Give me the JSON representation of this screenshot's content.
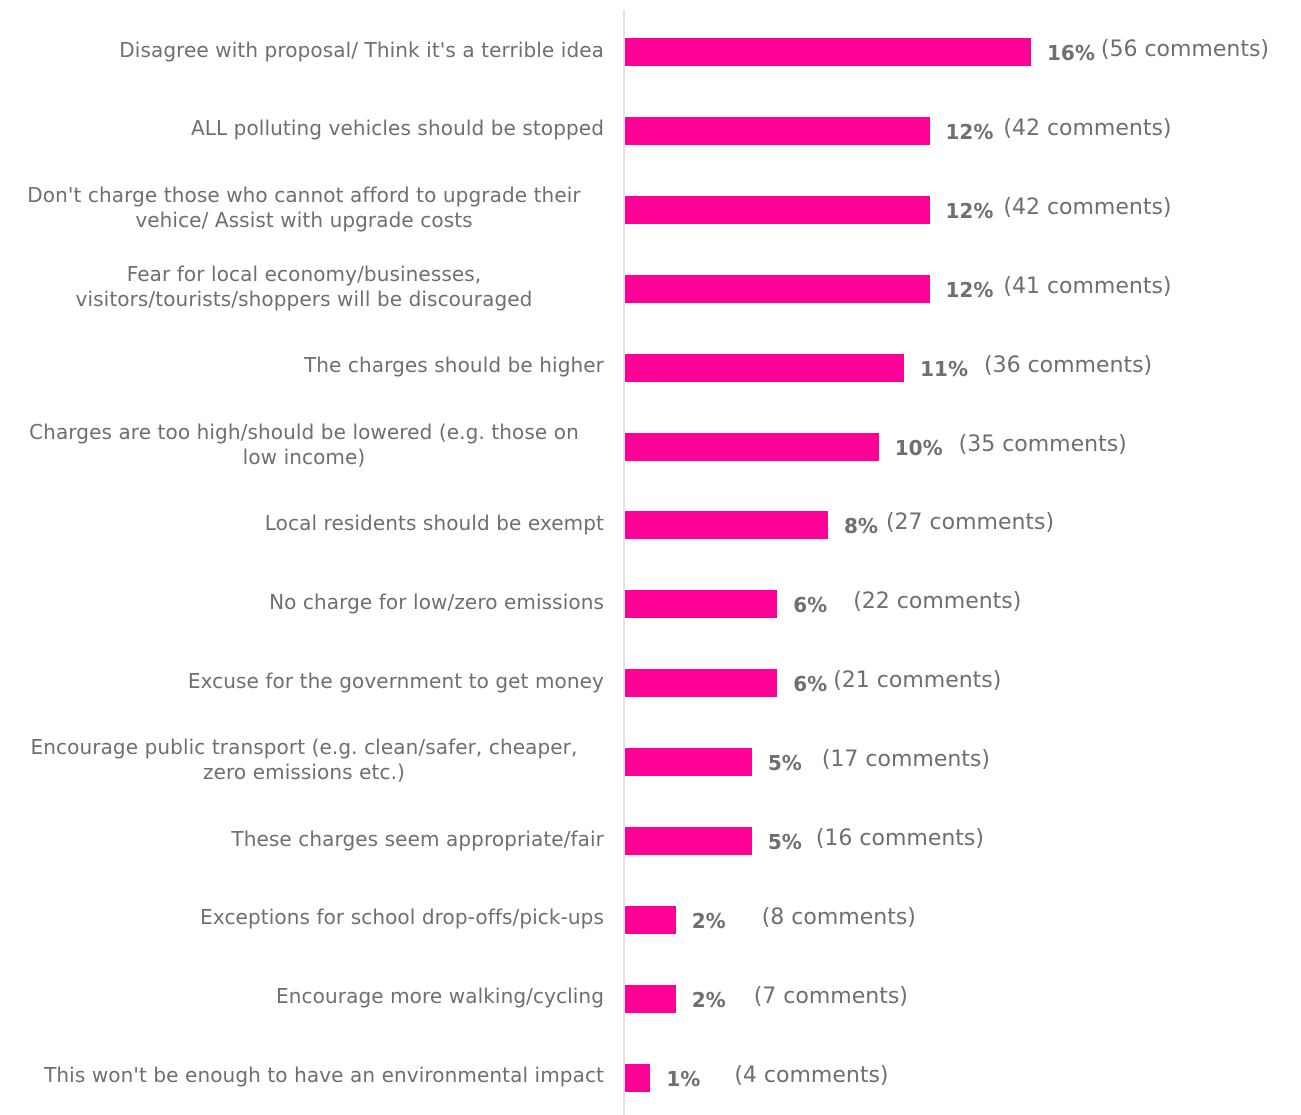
{
  "chart_data": {
    "type": "bar",
    "orientation": "horizontal",
    "categories": [
      "Disagree with proposal/ Think it's a terrible idea",
      "ALL polluting vehicles should be stopped",
      "Don't charge those who cannot afford to upgrade their vehice/ Assist with upgrade costs",
      "Fear for local economy/businesses, visitors/tourists/shoppers will be discouraged",
      "The charges should be higher",
      "Charges are too high/should be lowered (e.g. those on low income)",
      "Local residents should be exempt",
      "No charge for low/zero emissions",
      "Excuse for the government to get money",
      "Encourage public transport (e.g. clean/safer, cheaper, zero emissions etc.)",
      "These charges seem appropriate/fair",
      "Exceptions for school drop-offs/pick-ups",
      "Encourage more walking/cycling",
      "This won't be enough to have an environmental impact"
    ],
    "category_lines": [
      [
        "Disagree with proposal/ Think it's a terrible idea"
      ],
      [
        "ALL polluting vehicles should be stopped"
      ],
      [
        "Don't charge those who cannot afford to upgrade their",
        "vehice/ Assist with upgrade costs"
      ],
      [
        "Fear for local economy/businesses,",
        "visitors/tourists/shoppers will be discouraged"
      ],
      [
        "The charges should be higher"
      ],
      [
        "Charges are too high/should be lowered (e.g. those on",
        "low income)"
      ],
      [
        "Local residents should be exempt"
      ],
      [
        "No charge for low/zero emissions"
      ],
      [
        "Excuse for the government to get money"
      ],
      [
        "Encourage public transport (e.g. clean/safer, cheaper,",
        "zero emissions etc.)"
      ],
      [
        "These charges seem appropriate/fair"
      ],
      [
        "Exceptions for school drop-offs/pick-ups"
      ],
      [
        "Encourage more walking/cycling"
      ],
      [
        "This won't be enough to have an environmental impact"
      ]
    ],
    "values": [
      16,
      12,
      12,
      12,
      11,
      10,
      8,
      6,
      6,
      5,
      5,
      2,
      2,
      1
    ],
    "value_labels": [
      "16%",
      "12%",
      "12%",
      "12%",
      "11%",
      "10%",
      "8%",
      "6%",
      "6%",
      "5%",
      "5%",
      "2%",
      "2%",
      "1%"
    ],
    "comment_labels": [
      "(56 comments)",
      "(42 comments)",
      "(42 comments)",
      "(41 comments)",
      "(36 comments)",
      "(35 comments)",
      "(27 comments)",
      "(22 comments)",
      "(21 comments)",
      "(17 comments)",
      "(16 comments)",
      "(8 comments)",
      "(7 comments)",
      "(4 comments)"
    ],
    "xlim": [
      0,
      16
    ],
    "grid": false,
    "legend": "none",
    "colors": {
      "bar": "#ff0096",
      "text": "#6f6f6f",
      "axis": "#e3e3e3"
    }
  }
}
